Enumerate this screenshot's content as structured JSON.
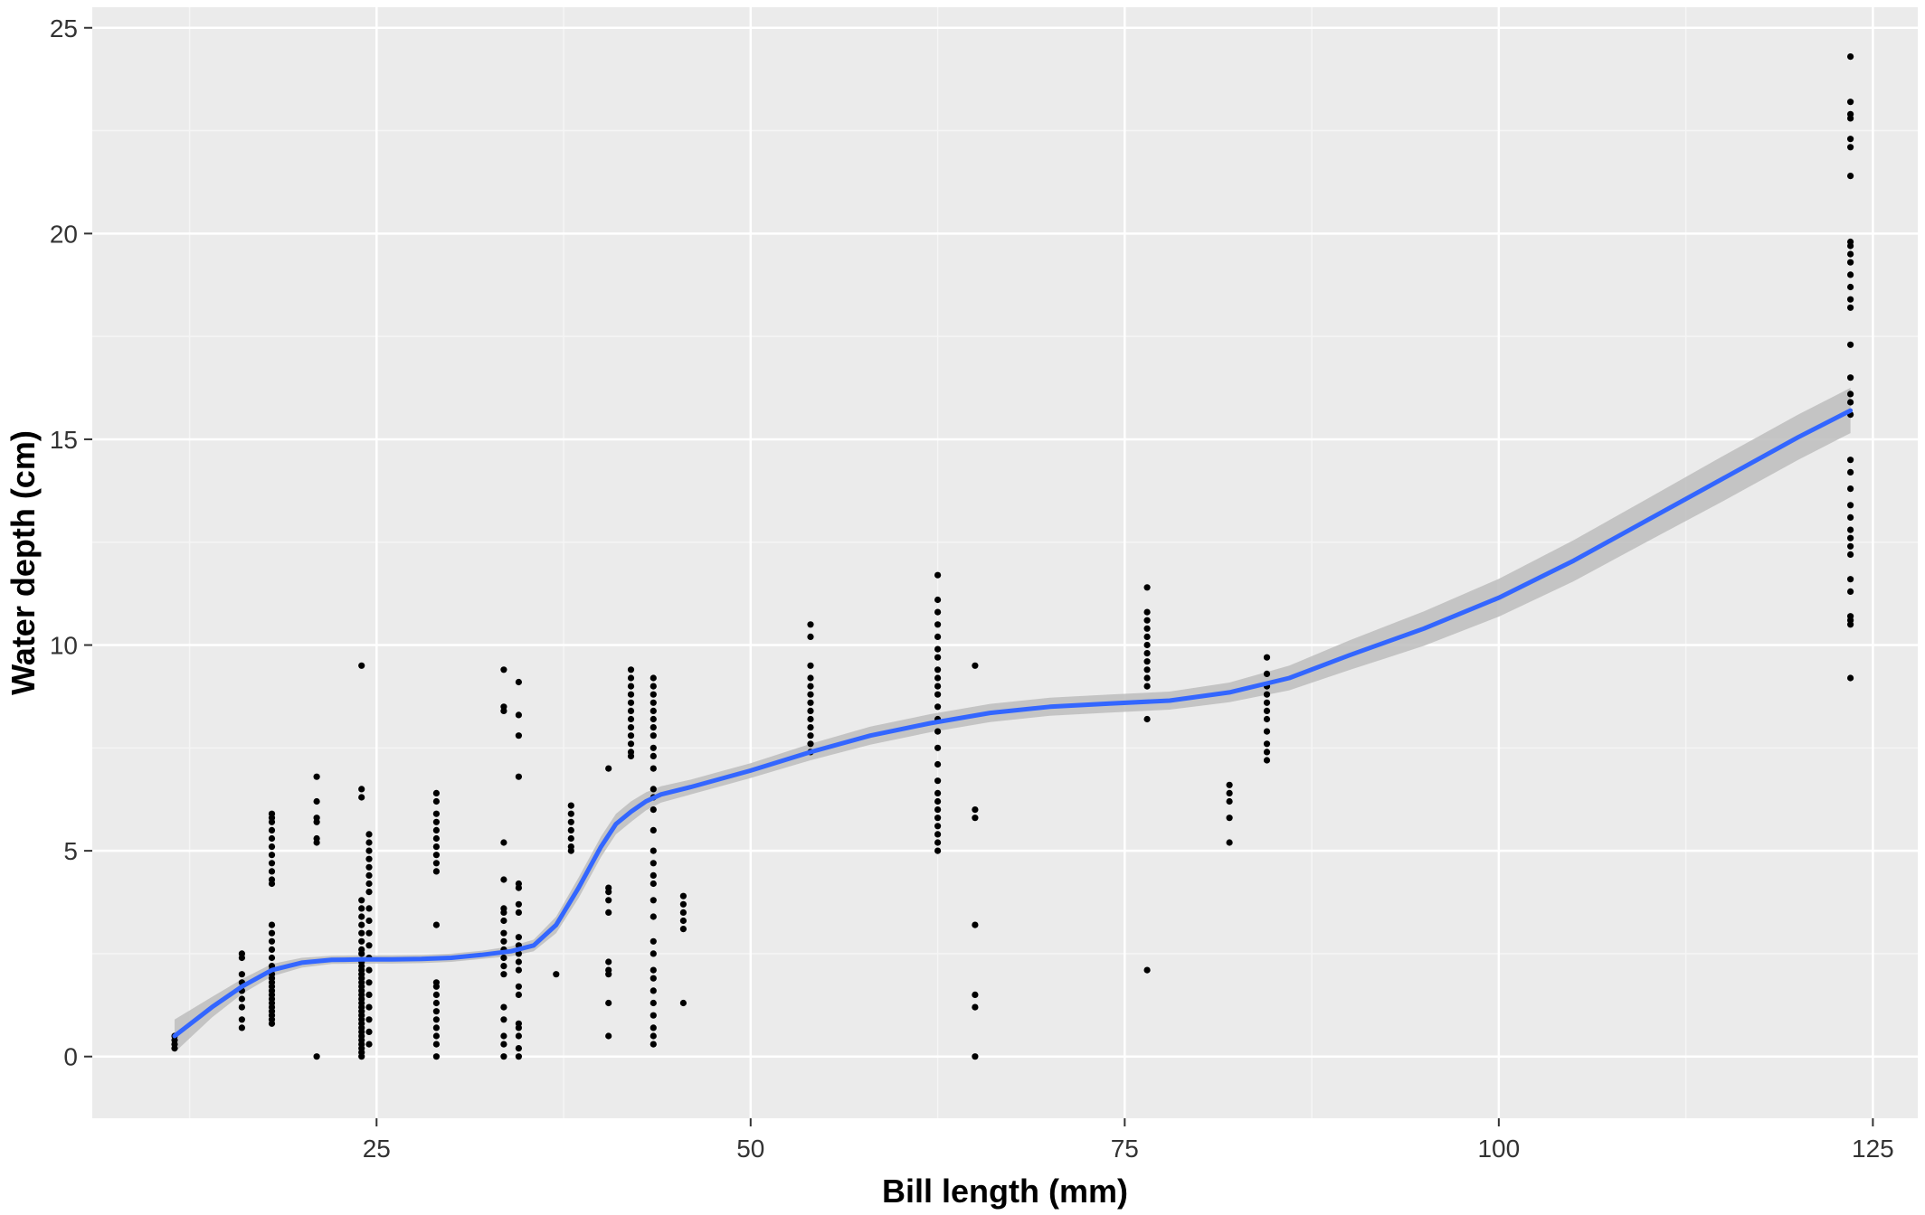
{
  "chart_data": {
    "type": "scatter",
    "title": "",
    "xlabel": "Bill length (mm)",
    "ylabel": "Water depth (cm)",
    "xlim": [
      6,
      128
    ],
    "ylim": [
      -1.5,
      25.5
    ],
    "x_ticks": [
      25,
      50,
      75,
      100,
      125
    ],
    "y_ticks": [
      0,
      5,
      10,
      15,
      20,
      25
    ],
    "grid": true,
    "legend": "none",
    "colors": {
      "panel": "#ebebeb",
      "grid_major": "#ffffff",
      "grid_minor": "#f5f5f5",
      "point": "#000000",
      "smooth_line": "#3366ff",
      "ci_band": "#bdbdbd"
    },
    "points_by_x": [
      {
        "x": 11.5,
        "y": [
          0.2,
          0.3,
          0.4,
          0.5
        ]
      },
      {
        "x": 16,
        "y": [
          0.7,
          0.9,
          1.2,
          1.4,
          1.6,
          1.8,
          2.0,
          2.4,
          2.5
        ]
      },
      {
        "x": 18,
        "y": [
          0.8,
          0.9,
          1.0,
          1.1,
          1.2,
          1.3,
          1.4,
          1.5,
          1.6,
          1.7,
          1.8,
          1.9,
          2.0,
          2.1,
          2.2,
          2.4,
          2.6,
          2.8,
          3.0,
          3.2,
          4.2,
          4.3,
          4.5,
          4.7,
          4.9,
          5.1,
          5.3,
          5.5,
          5.7,
          5.8,
          5.9
        ]
      },
      {
        "x": 21,
        "y": [
          0.0,
          5.2,
          5.3,
          5.7,
          5.8,
          6.2,
          6.8
        ]
      },
      {
        "x": 24,
        "y": [
          0.0,
          0.1,
          0.2,
          0.3,
          0.4,
          0.5,
          0.6,
          0.7,
          0.8,
          0.9,
          1.0,
          1.1,
          1.2,
          1.3,
          1.4,
          1.5,
          1.6,
          1.7,
          1.8,
          1.9,
          2.0,
          2.1,
          2.2,
          2.3,
          2.5,
          2.6,
          2.8,
          3.0,
          3.2,
          3.4,
          3.6,
          3.8,
          6.3,
          6.5,
          9.5
        ]
      },
      {
        "x": 24.5,
        "y": [
          0.3,
          0.6,
          0.9,
          1.2,
          1.5,
          1.8,
          2.1,
          2.4,
          2.7,
          3.0,
          3.3,
          3.6,
          4.0,
          4.2,
          4.4,
          4.6,
          4.8,
          5.0,
          5.2,
          5.4
        ]
      },
      {
        "x": 29,
        "y": [
          0.0,
          0.3,
          0.5,
          0.7,
          0.9,
          1.1,
          1.3,
          1.5,
          1.7,
          1.8,
          3.2,
          4.5,
          4.7,
          4.9,
          5.1,
          5.3,
          5.5,
          5.7,
          5.9,
          6.2,
          6.4
        ]
      },
      {
        "x": 33.5,
        "y": [
          0.0,
          0.3,
          0.5,
          0.9,
          1.2,
          2.0,
          2.2,
          2.4,
          2.6,
          2.8,
          3.0,
          3.3,
          3.5,
          3.6,
          4.3,
          5.2,
          8.4,
          8.5,
          9.4
        ]
      },
      {
        "x": 34.5,
        "y": [
          0.0,
          0.2,
          0.5,
          0.7,
          0.8,
          1.5,
          1.7,
          2.1,
          2.3,
          2.5,
          2.7,
          2.9,
          3.5,
          3.7,
          4.1,
          4.2,
          6.8,
          7.8,
          8.3,
          9.1
        ]
      },
      {
        "x": 37,
        "y": [
          2.0
        ]
      },
      {
        "x": 38,
        "y": [
          5.0,
          5.1,
          5.3,
          5.5,
          5.7,
          5.9,
          6.1
        ]
      },
      {
        "x": 40.5,
        "y": [
          0.5,
          1.3,
          2.0,
          2.1,
          2.3,
          3.5,
          3.8,
          4.0,
          4.1,
          7.0
        ]
      },
      {
        "x": 42,
        "y": [
          7.3,
          7.4,
          7.6,
          7.8,
          8.0,
          8.2,
          8.4,
          8.6,
          8.8,
          9.0,
          9.2,
          9.4
        ]
      },
      {
        "x": 43.5,
        "y": [
          0.3,
          0.5,
          0.7,
          1.0,
          1.3,
          1.6,
          1.9,
          2.1,
          2.5,
          2.8,
          3.4,
          3.8,
          4.2,
          4.4,
          4.7,
          5.0,
          5.5,
          6.0,
          6.3,
          6.5,
          7.0,
          7.3,
          7.5,
          7.8,
          8.0,
          8.2,
          8.4,
          8.6,
          8.8,
          9.0,
          9.2
        ]
      },
      {
        "x": 45.5,
        "y": [
          1.3,
          3.1,
          3.3,
          3.5,
          3.7,
          3.9
        ]
      },
      {
        "x": 54,
        "y": [
          7.4,
          7.6,
          7.8,
          8.0,
          8.2,
          8.4,
          8.6,
          8.8,
          9.0,
          9.2,
          9.5,
          10.2,
          10.5
        ]
      },
      {
        "x": 62.5,
        "y": [
          5.0,
          5.2,
          5.4,
          5.6,
          5.8,
          6.0,
          6.2,
          6.4,
          6.7,
          7.1,
          7.5,
          7.9,
          8.2,
          8.5,
          8.8,
          9.0,
          9.2,
          9.4,
          9.7,
          9.9,
          10.2,
          10.5,
          10.8,
          11.1,
          11.7
        ]
      },
      {
        "x": 65,
        "y": [
          0.0,
          1.2,
          1.5,
          3.2,
          5.8,
          6.0,
          9.5
        ]
      },
      {
        "x": 76.5,
        "y": [
          2.1,
          8.2,
          9.0,
          9.2,
          9.4,
          9.6,
          9.8,
          10.0,
          10.2,
          10.4,
          10.6,
          10.8,
          11.4
        ]
      },
      {
        "x": 82,
        "y": [
          5.2,
          5.8,
          6.2,
          6.4,
          6.6
        ]
      },
      {
        "x": 84.5,
        "y": [
          7.2,
          7.4,
          7.6,
          7.9,
          8.2,
          8.4,
          8.6,
          8.8,
          9.0,
          9.3,
          9.7
        ]
      },
      {
        "x": 123.5,
        "y": [
          9.2,
          10.5,
          10.6,
          10.7,
          11.3,
          11.6,
          12.2,
          12.4,
          12.6,
          12.8,
          13.1,
          13.4,
          13.8,
          14.2,
          14.5,
          15.6,
          15.9,
          16.1,
          16.5,
          17.3,
          18.2,
          18.4,
          18.7,
          19.0,
          19.3,
          19.5,
          19.7,
          19.8,
          21.4,
          22.1,
          22.3,
          22.8,
          22.9,
          23.2,
          24.3
        ]
      }
    ],
    "smooth": {
      "x": [
        11.5,
        14,
        16,
        18,
        20,
        22,
        24,
        26,
        28,
        30,
        32,
        34,
        35.5,
        37,
        38.5,
        40,
        41,
        42,
        43,
        44,
        46,
        48,
        50,
        54,
        58,
        62,
        66,
        70,
        74,
        78,
        82,
        86,
        90,
        95,
        100,
        105,
        110,
        115,
        120,
        123.5
      ],
      "y": [
        0.5,
        1.2,
        1.7,
        2.1,
        2.28,
        2.35,
        2.36,
        2.36,
        2.37,
        2.4,
        2.47,
        2.56,
        2.7,
        3.2,
        4.1,
        5.1,
        5.65,
        5.95,
        6.2,
        6.37,
        6.55,
        6.75,
        6.95,
        7.4,
        7.8,
        8.1,
        8.35,
        8.5,
        8.58,
        8.65,
        8.85,
        9.2,
        9.75,
        10.4,
        11.15,
        12.05,
        13.05,
        14.05,
        15.05,
        15.7
      ],
      "se": [
        0.4,
        0.25,
        0.18,
        0.15,
        0.12,
        0.1,
        0.1,
        0.1,
        0.1,
        0.1,
        0.1,
        0.12,
        0.14,
        0.2,
        0.25,
        0.25,
        0.25,
        0.25,
        0.22,
        0.2,
        0.18,
        0.18,
        0.18,
        0.2,
        0.22,
        0.22,
        0.22,
        0.22,
        0.22,
        0.22,
        0.24,
        0.3,
        0.36,
        0.42,
        0.46,
        0.5,
        0.52,
        0.55,
        0.55,
        0.55
      ]
    }
  }
}
